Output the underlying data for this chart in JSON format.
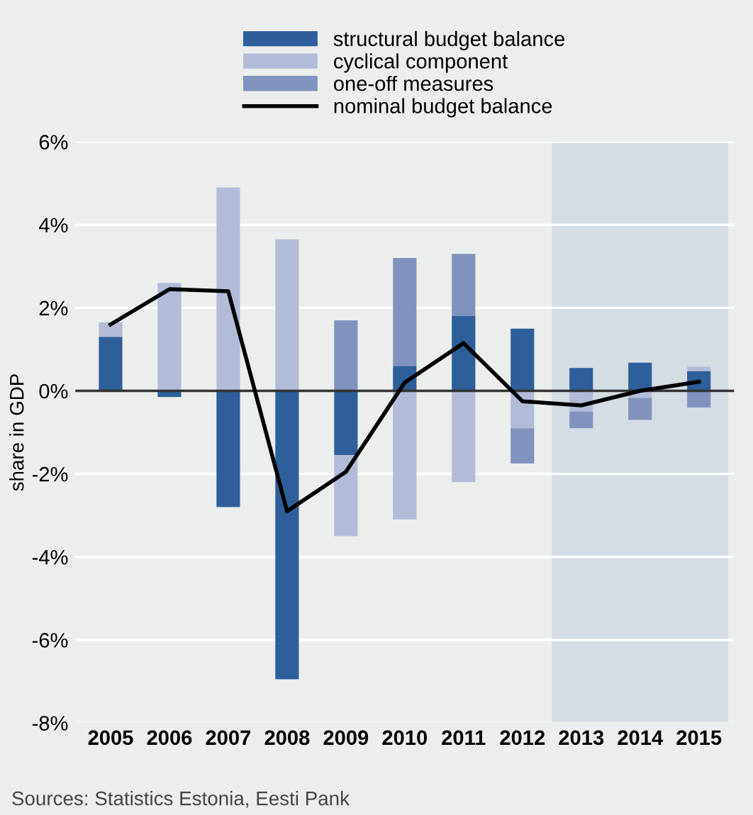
{
  "chart_data": {
    "type": "bar",
    "stacked": true,
    "ylabel": "share in GDP",
    "categories": [
      "2005",
      "2006",
      "2007",
      "2008",
      "2009",
      "2010",
      "2011",
      "2012",
      "2013",
      "2014",
      "2015"
    ],
    "series": [
      {
        "name": "structural budget balance",
        "color": "#2e5f9a",
        "values": [
          1.3,
          -0.15,
          -2.8,
          -6.95,
          -1.55,
          0.6,
          1.8,
          1.5,
          0.55,
          0.68,
          0.48
        ]
      },
      {
        "name": "cyclical component",
        "color": "#b2bcd9",
        "values": [
          0.35,
          2.6,
          4.9,
          3.65,
          -1.95,
          -3.1,
          -2.2,
          -0.9,
          -0.5,
          -0.17,
          0.1
        ]
      },
      {
        "name": "one-off measures",
        "color": "#7f93be",
        "values": [
          null,
          null,
          null,
          null,
          1.7,
          2.6,
          1.5,
          -0.85,
          -0.4,
          -0.53,
          -0.4
        ]
      },
      {
        "name": "nominal budget balance",
        "type": "line",
        "color": "#000000",
        "values": [
          1.6,
          2.45,
          2.4,
          -2.9,
          -1.95,
          0.2,
          1.15,
          -0.25,
          -0.35,
          0.0,
          0.22
        ]
      }
    ],
    "ylim": [
      -8,
      6
    ],
    "yticks": [
      {
        "value": -8,
        "label": "-8%"
      },
      {
        "value": -6,
        "label": "-6%"
      },
      {
        "value": -4,
        "label": "-4%"
      },
      {
        "value": -2,
        "label": "-2%"
      },
      {
        "value": 0,
        "label": "0%"
      },
      {
        "value": 2,
        "label": "2%"
      },
      {
        "value": 4,
        "label": "4%"
      },
      {
        "value": 6,
        "label": "6%"
      }
    ],
    "grid": "y",
    "legend": "top",
    "marker": "none",
    "line_style": "solid",
    "ref_lines": [
      {
        "axis": "y",
        "value": 0,
        "color": "#333333"
      }
    ],
    "bands": [
      {
        "axis": "x",
        "from": "2013",
        "to": "2015",
        "color": "#d4dce4"
      }
    ],
    "annotations": [
      "Sources: Statistics Estonia, Eesti Pank"
    ]
  }
}
